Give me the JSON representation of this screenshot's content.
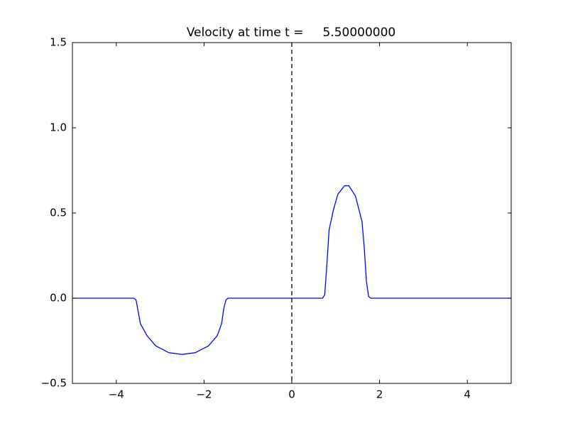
{
  "chart_data": {
    "type": "line",
    "title": "Velocity at time t =     5.50000000",
    "x": [
      -5,
      -3.6,
      -3.55,
      -3.5,
      -3.45,
      -3.3,
      -3.1,
      -2.8,
      -2.5,
      -2.2,
      -1.9,
      -1.7,
      -1.6,
      -1.55,
      -1.5,
      -1.45,
      0.7,
      0.75,
      0.8,
      0.85,
      0.95,
      1.05,
      1.2,
      1.3,
      1.45,
      1.6,
      1.65,
      1.7,
      1.75,
      1.8,
      5
    ],
    "values": [
      0,
      0,
      -0.01,
      -0.08,
      -0.15,
      -0.22,
      -0.28,
      -0.32,
      -0.33,
      -0.32,
      -0.28,
      -0.22,
      -0.15,
      -0.06,
      -0.01,
      0,
      0,
      0.02,
      0.2,
      0.4,
      0.52,
      0.61,
      0.66,
      0.66,
      0.6,
      0.45,
      0.3,
      0.1,
      0.01,
      0,
      0
    ],
    "color": "#0000ff",
    "xlim": [
      -5,
      5
    ],
    "ylim": [
      -0.5,
      1.5
    ],
    "xticks": [
      {
        "value": -4,
        "label": "−4"
      },
      {
        "value": -2,
        "label": "−2"
      },
      0,
      2,
      4
    ],
    "yticks": [
      {
        "value": -0.5,
        "label": "−0.5"
      },
      {
        "value": 0,
        "label": "0.0"
      },
      0.5,
      {
        "value": 1,
        "label": "1.0"
      },
      1.5
    ],
    "vlines": [
      0
    ]
  }
}
